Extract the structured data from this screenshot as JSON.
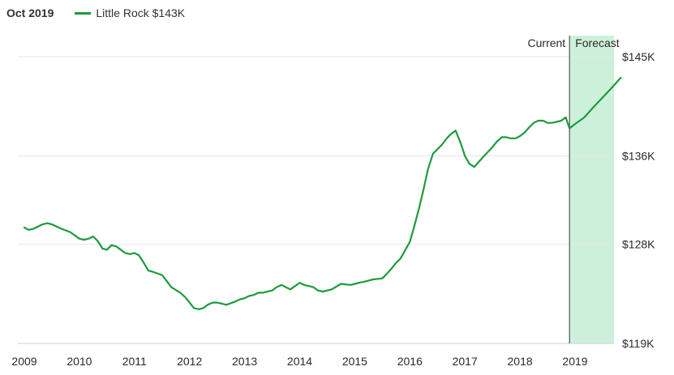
{
  "header": {
    "date": "Oct 2019",
    "legend_label": "Little Rock $143K"
  },
  "colors": {
    "line": "#1e9a3e",
    "forecast_fill": "#cdf0da",
    "grid": "#e6e6e6",
    "divider": "#555555"
  },
  "chart_data": {
    "type": "line",
    "title": "",
    "xlabel": "",
    "ylabel": "",
    "x_ticks": [
      "2009",
      "2010",
      "2011",
      "2012",
      "2013",
      "2014",
      "2015",
      "2016",
      "2017",
      "2018",
      "2019"
    ],
    "y_ticks": [
      "$145K",
      "$136K",
      "$128K",
      "$119K"
    ],
    "y_tick_values": [
      145,
      136,
      128,
      119
    ],
    "ylim": [
      119,
      145
    ],
    "xlim": [
      2009,
      2019.85
    ],
    "grid": true,
    "legend": "top-left",
    "current_label": "Current",
    "forecast_label": "Forecast",
    "forecast_start": 2018.9,
    "series": [
      {
        "name": "Little Rock",
        "x": [
          2009.0,
          2009.08,
          2009.17,
          2009.33,
          2009.42,
          2009.5,
          2009.67,
          2009.83,
          2010.0,
          2010.08,
          2010.17,
          2010.25,
          2010.33,
          2010.42,
          2010.5,
          2010.58,
          2010.67,
          2010.83,
          2010.92,
          2011.0,
          2011.08,
          2011.17,
          2011.25,
          2011.33,
          2011.5,
          2011.67,
          2011.83,
          2011.92,
          2012.0,
          2012.08,
          2012.17,
          2012.25,
          2012.33,
          2012.42,
          2012.5,
          2012.67,
          2012.83,
          2012.92,
          2013.0,
          2013.08,
          2013.17,
          2013.25,
          2013.33,
          2013.5,
          2013.58,
          2013.67,
          2013.75,
          2013.83,
          2014.0,
          2014.08,
          2014.17,
          2014.25,
          2014.33,
          2014.42,
          2014.58,
          2014.75,
          2014.92,
          2015.0,
          2015.08,
          2015.17,
          2015.25,
          2015.33,
          2015.5,
          2015.58,
          2015.67,
          2015.75,
          2015.83,
          2016.0,
          2016.08,
          2016.17,
          2016.25,
          2016.33,
          2016.42,
          2016.58,
          2016.67,
          2016.75,
          2016.83,
          2016.92,
          2017.0,
          2017.08,
          2017.17,
          2017.33,
          2017.5,
          2017.58,
          2017.67,
          2017.75,
          2017.83,
          2017.92,
          2018.0,
          2018.08,
          2018.17,
          2018.25,
          2018.33,
          2018.42,
          2018.5,
          2018.58,
          2018.67,
          2018.75,
          2018.83,
          2018.9,
          2019.0,
          2019.17,
          2019.33,
          2019.5,
          2019.67,
          2019.83
        ],
        "y": [
          129.5,
          129.3,
          129.4,
          129.8,
          129.9,
          129.8,
          129.4,
          129.1,
          128.5,
          128.4,
          128.5,
          128.7,
          128.3,
          127.6,
          127.5,
          127.9,
          127.8,
          127.2,
          127.1,
          127.2,
          127.0,
          126.3,
          125.6,
          125.5,
          125.2,
          124.1,
          123.6,
          123.2,
          122.7,
          122.2,
          122.1,
          122.2,
          122.5,
          122.7,
          122.7,
          122.5,
          122.8,
          123.0,
          123.1,
          123.3,
          123.4,
          123.6,
          123.6,
          123.8,
          124.1,
          124.3,
          124.1,
          123.9,
          124.5,
          124.3,
          124.2,
          124.1,
          123.8,
          123.7,
          123.9,
          124.4,
          124.3,
          124.4,
          124.5,
          124.6,
          124.7,
          124.8,
          124.9,
          125.3,
          125.8,
          126.3,
          126.7,
          128.2,
          129.6,
          131.3,
          133.0,
          134.8,
          136.2,
          137.0,
          137.6,
          138.0,
          138.3,
          137.2,
          136.0,
          135.3,
          135.0,
          135.9,
          136.8,
          137.3,
          137.7,
          137.7,
          137.6,
          137.6,
          137.8,
          138.1,
          138.6,
          139.0,
          139.2,
          139.2,
          139.0,
          139.0,
          139.1,
          139.2,
          139.5,
          138.5,
          138.9,
          139.5,
          140.4,
          141.3,
          142.2,
          143.1
        ]
      }
    ]
  }
}
